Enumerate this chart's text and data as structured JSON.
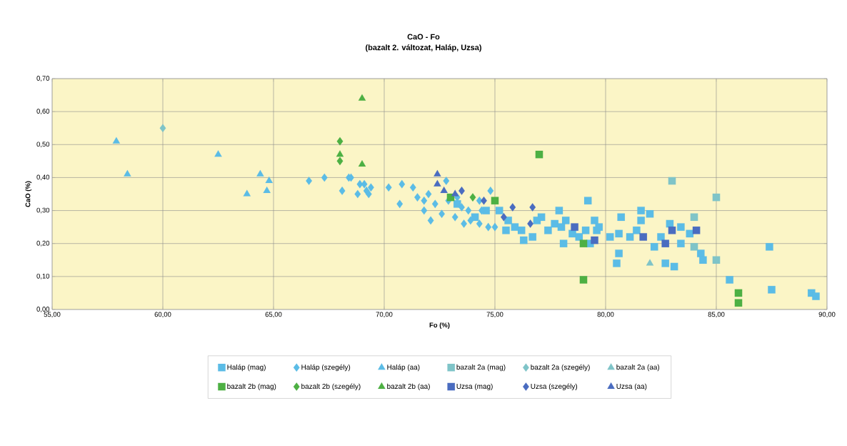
{
  "chart_data": {
    "type": "scatter",
    "title": "CaO - Fo",
    "subtitle": "(bazalt 2. változat, Haláp, Uzsa)",
    "xlabel": "Fo (%)",
    "ylabel": "CaO (%)",
    "xlim": [
      55,
      90
    ],
    "ylim": [
      0,
      0.7
    ],
    "xticks": [
      {
        "value": 55,
        "label": "55,00"
      },
      {
        "value": 60,
        "label": "60,00"
      },
      {
        "value": 65,
        "label": "65,00"
      },
      {
        "value": 70,
        "label": "70,00"
      },
      {
        "value": 75,
        "label": "75,00"
      },
      {
        "value": 80,
        "label": "80,00"
      },
      {
        "value": 85,
        "label": "85,00"
      },
      {
        "value": 90,
        "label": "90,00"
      }
    ],
    "yticks": [
      {
        "value": 0,
        "label": "0,00"
      },
      {
        "value": 0.1,
        "label": "0,10"
      },
      {
        "value": 0.2,
        "label": "0,20"
      },
      {
        "value": 0.3,
        "label": "0,30"
      },
      {
        "value": 0.4,
        "label": "0,40"
      },
      {
        "value": 0.5,
        "label": "0,50"
      },
      {
        "value": 0.6,
        "label": "0,60"
      },
      {
        "value": 0.7,
        "label": "0,70"
      }
    ],
    "grid": true,
    "legend": "bottom",
    "series": [
      {
        "name": "Haláp (mag)",
        "color": "#5bbce6",
        "marker": "square",
        "x": [
          75.2,
          75.6,
          76.2,
          76.3,
          76.7,
          77.1,
          77.4,
          77.9,
          78.2,
          78.1,
          78.5,
          77.7,
          75.9,
          75.5,
          76.9,
          79.5,
          79.1,
          79.6,
          79.2,
          79.3,
          79.7,
          80.2,
          80.5,
          80.6,
          80.6,
          80.7,
          81.1,
          81.4,
          81.6,
          81.6,
          82.0,
          82.2,
          82.5,
          82.7,
          82.9,
          83.1,
          83.4,
          83.4,
          83.8,
          84.3,
          84.4,
          85.6,
          87.4,
          87.5,
          89.3,
          89.5,
          73.3,
          74.6,
          74.1,
          78.8,
          78.0
        ],
        "values": [
          0.3,
          0.27,
          0.24,
          0.21,
          0.22,
          0.28,
          0.24,
          0.3,
          0.27,
          0.2,
          0.23,
          0.26,
          0.25,
          0.24,
          0.27,
          0.27,
          0.24,
          0.24,
          0.33,
          0.2,
          0.25,
          0.22,
          0.14,
          0.17,
          0.23,
          0.28,
          0.22,
          0.24,
          0.3,
          0.27,
          0.29,
          0.19,
          0.22,
          0.14,
          0.26,
          0.13,
          0.25,
          0.2,
          0.23,
          0.17,
          0.15,
          0.09,
          0.19,
          0.06,
          0.05,
          0.04,
          0.32,
          0.3,
          0.28,
          0.22,
          0.25
        ]
      },
      {
        "name": "Haláp (szegély)",
        "color": "#5bbce6",
        "marker": "diamond",
        "x": [
          66.6,
          67.3,
          68.1,
          68.4,
          68.5,
          68.8,
          68.9,
          69.2,
          69.1,
          69.4,
          69.3,
          70.2,
          70.8,
          70.7,
          71.3,
          71.5,
          71.8,
          72.0,
          71.8,
          72.1,
          72.6,
          72.3,
          72.8,
          72.9,
          73.2,
          73.5,
          73.6,
          73.9,
          73.8,
          74.4,
          74.3,
          74.7,
          74.8,
          75.0,
          74.3,
          73.3
        ],
        "values": [
          0.39,
          0.4,
          0.36,
          0.4,
          0.4,
          0.35,
          0.38,
          0.36,
          0.38,
          0.37,
          0.35,
          0.37,
          0.38,
          0.32,
          0.37,
          0.34,
          0.33,
          0.35,
          0.3,
          0.27,
          0.29,
          0.32,
          0.39,
          0.33,
          0.28,
          0.31,
          0.26,
          0.27,
          0.3,
          0.3,
          0.26,
          0.25,
          0.36,
          0.25,
          0.33,
          0.34
        ]
      },
      {
        "name": "Haláp (aa)",
        "color": "#5bbce6",
        "marker": "triangle",
        "x": [
          57.9,
          58.4,
          62.5,
          63.8,
          64.4,
          64.8,
          64.7
        ],
        "values": [
          0.51,
          0.41,
          0.47,
          0.35,
          0.41,
          0.39,
          0.36
        ]
      },
      {
        "name": "bazalt 2a (mag)",
        "color": "#7fc4c8",
        "marker": "square",
        "x": [
          83.0,
          85.0,
          84.0,
          84.0,
          85.0
        ],
        "values": [
          0.39,
          0.34,
          0.28,
          0.19,
          0.15
        ]
      },
      {
        "name": "bazalt 2a (szegély)",
        "color": "#7fc4c8",
        "marker": "diamond",
        "x": [
          60.0
        ],
        "values": [
          0.55
        ]
      },
      {
        "name": "bazalt 2a (aa)",
        "color": "#7fc4c8",
        "marker": "triangle",
        "x": [
          82.0
        ],
        "values": [
          0.14
        ]
      },
      {
        "name": "bazalt 2b (mag)",
        "color": "#4db043",
        "marker": "square",
        "x": [
          77.0,
          75.0,
          73.0,
          79.0,
          79.0,
          86.0,
          86.0
        ],
        "values": [
          0.47,
          0.33,
          0.34,
          0.2,
          0.09,
          0.05,
          0.02
        ]
      },
      {
        "name": "bazalt 2b (szegély)",
        "color": "#4db043",
        "marker": "diamond",
        "x": [
          68.0,
          68.0,
          74.0
        ],
        "values": [
          0.51,
          0.45,
          0.34
        ]
      },
      {
        "name": "bazalt 2b (aa)",
        "color": "#4db043",
        "marker": "triangle",
        "x": [
          69.0,
          68.0,
          69.0
        ],
        "values": [
          0.64,
          0.47,
          0.44
        ]
      },
      {
        "name": "Uzsa (mag)",
        "color": "#4a6cc0",
        "marker": "square",
        "x": [
          78.6,
          79.5,
          81.7,
          82.7,
          83.0,
          84.1
        ],
        "values": [
          0.25,
          0.21,
          0.22,
          0.2,
          0.24,
          0.24
        ]
      },
      {
        "name": "Uzsa (szegély)",
        "color": "#4a6cc0",
        "marker": "diamond",
        "x": [
          73.5,
          74.5,
          75.8,
          76.7,
          75.4,
          76.6
        ],
        "values": [
          0.36,
          0.33,
          0.31,
          0.31,
          0.28,
          0.26
        ]
      },
      {
        "name": "Uzsa (aa)",
        "color": "#4a6cc0",
        "marker": "triangle",
        "x": [
          72.4,
          72.4,
          72.7,
          73.2
        ],
        "values": [
          0.41,
          0.38,
          0.36,
          0.35
        ]
      }
    ]
  }
}
